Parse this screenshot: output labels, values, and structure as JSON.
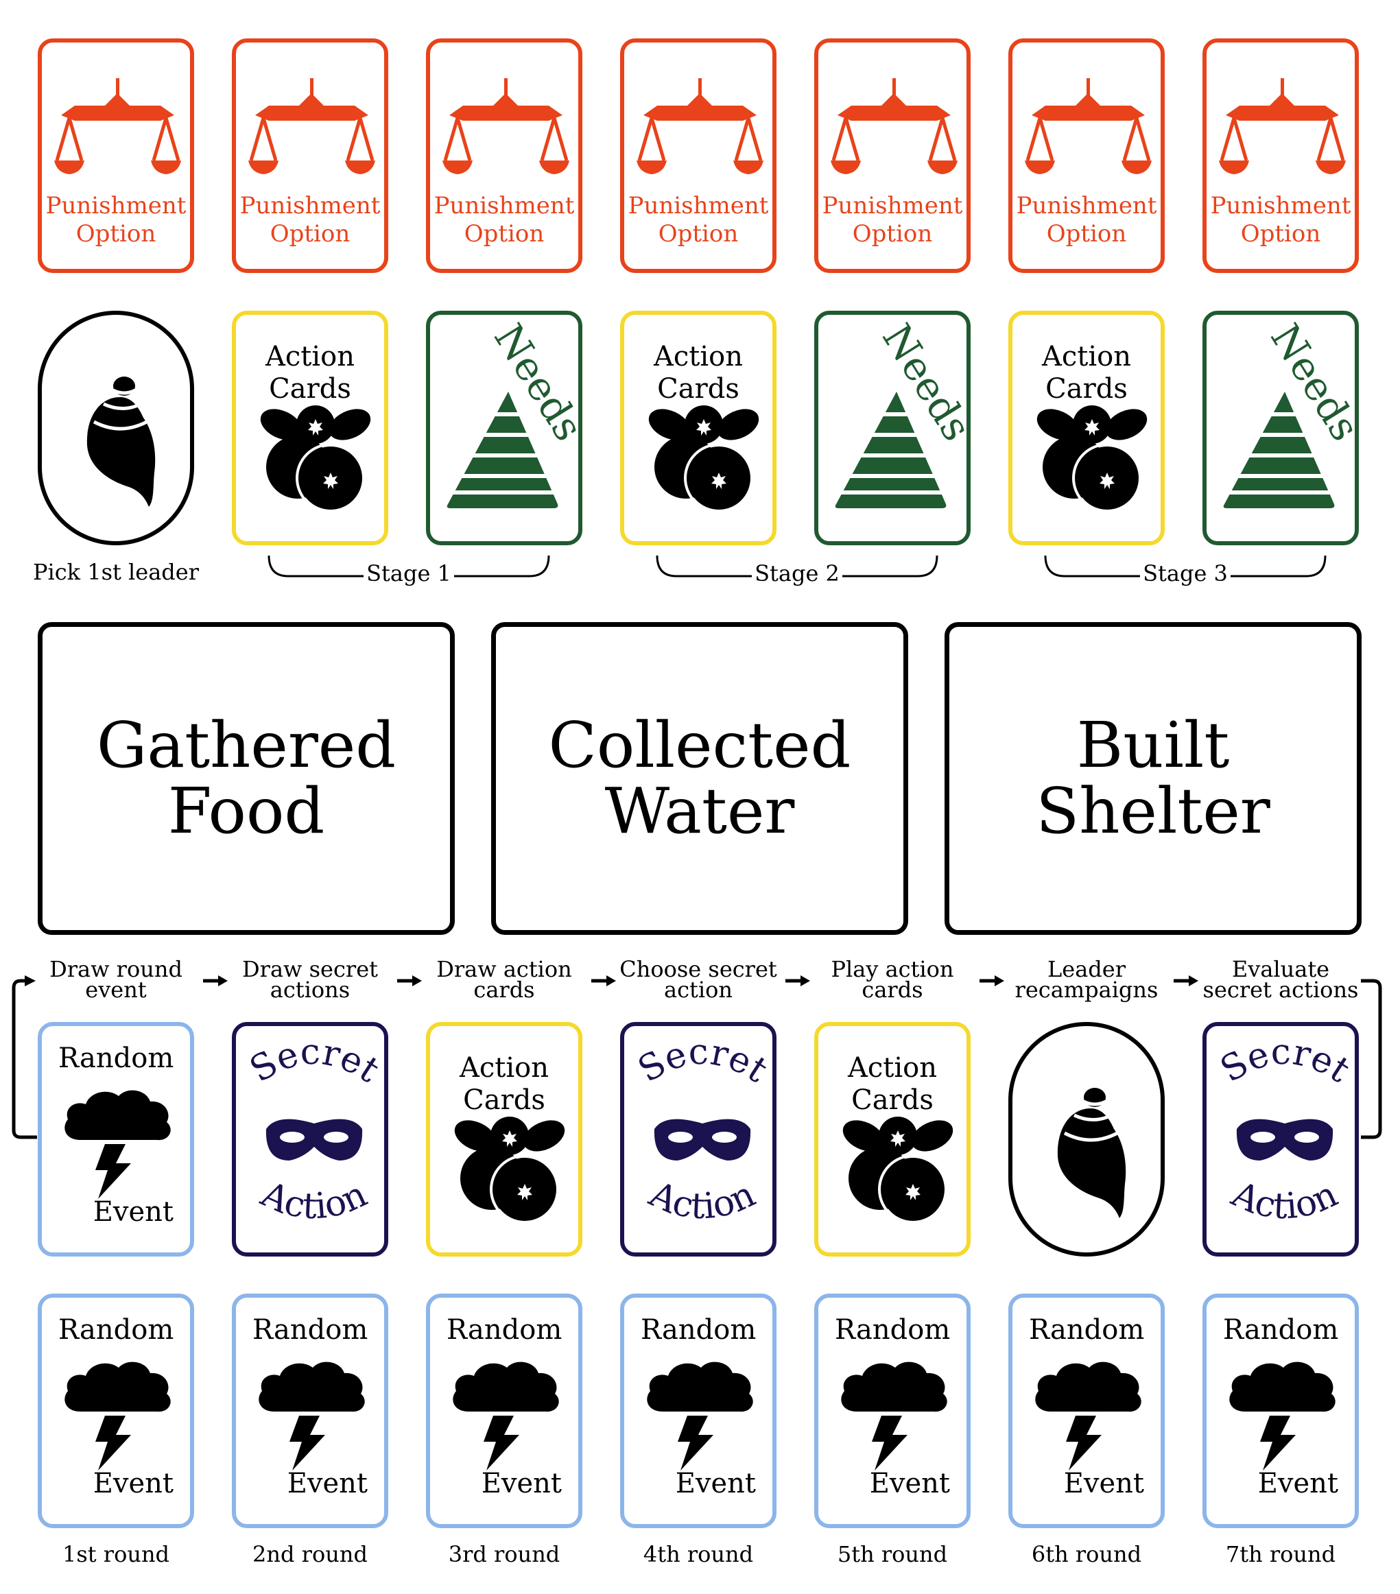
{
  "colors": {
    "punishment": "#e8431a",
    "action": "#f5d92c",
    "needs": "#1f5a30",
    "secret": "#1b1250",
    "event": "#8cb5ea",
    "leader": "#000000"
  },
  "punishment_cards": [
    {
      "icon": "scales-icon",
      "line1": "Punishment",
      "line2": "Option"
    },
    {
      "icon": "scales-icon",
      "line1": "Punishment",
      "line2": "Option"
    },
    {
      "icon": "scales-icon",
      "line1": "Punishment",
      "line2": "Option"
    },
    {
      "icon": "scales-icon",
      "line1": "Punishment",
      "line2": "Option"
    },
    {
      "icon": "scales-icon",
      "line1": "Punishment",
      "line2": "Option"
    },
    {
      "icon": "scales-icon",
      "line1": "Punishment",
      "line2": "Option"
    },
    {
      "icon": "scales-icon",
      "line1": "Punishment",
      "line2": "Option"
    }
  ],
  "setup_row": {
    "leader_caption": "Pick 1st leader",
    "action_card": {
      "line1": "Action",
      "line2": "Cards",
      "icon": "berries-icon"
    },
    "needs_card": {
      "title": "Needs",
      "icon": "pyramid-icon"
    },
    "stages": [
      "Stage 1",
      "Stage 2",
      "Stage 3"
    ]
  },
  "resource_boards": [
    {
      "line1": "Gathered",
      "line2": "Food"
    },
    {
      "line1": "Collected",
      "line2": "Water"
    },
    {
      "line1": "Built",
      "line2": "Shelter"
    }
  ],
  "round_steps": [
    {
      "line1": "Draw round",
      "line2": "event",
      "card": "event"
    },
    {
      "line1": "Draw secret",
      "line2": "actions",
      "card": "secret"
    },
    {
      "line1": "Draw action",
      "line2": "cards",
      "card": "action"
    },
    {
      "line1": "Choose secret",
      "line2": "action",
      "card": "secret"
    },
    {
      "line1": "Play action",
      "line2": "cards",
      "card": "action"
    },
    {
      "line1": "Leader",
      "line2": "recampaigns",
      "card": "leader"
    },
    {
      "line1": "Evaluate",
      "line2": "secret actions",
      "card": "secret"
    }
  ],
  "event_card": {
    "top": "Random",
    "bottom": "Event",
    "icon": "storm-cloud-icon"
  },
  "secret_card": {
    "top": "Secret",
    "bottom": "Action",
    "icon": "mask-icon"
  },
  "rounds": [
    "1st round",
    "2nd round",
    "3rd round",
    "4th round",
    "5th round",
    "6th round",
    "7th round"
  ]
}
